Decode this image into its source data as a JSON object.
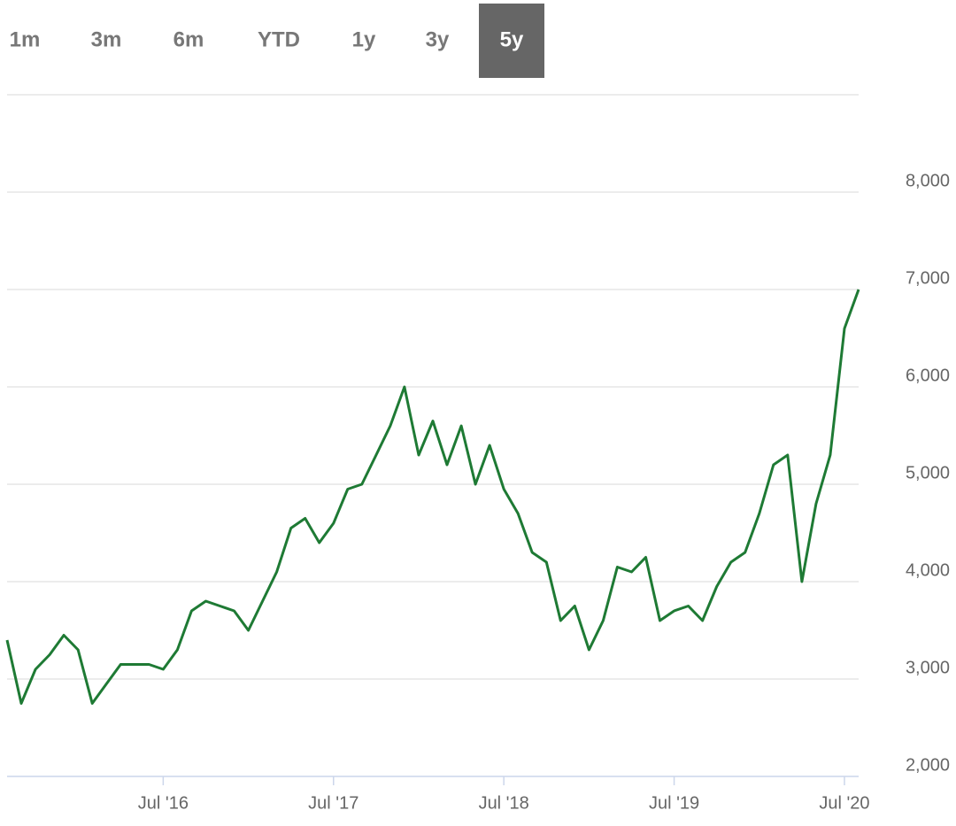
{
  "range_buttons": {
    "options": [
      "1m",
      "3m",
      "6m",
      "YTD",
      "1y",
      "3y",
      "5y"
    ],
    "selected": 6
  },
  "chart_data": {
    "type": "line",
    "color": "#1e7a34",
    "grid": true,
    "x": [
      "2015-08",
      "2015-09",
      "2015-10",
      "2015-11",
      "2015-12",
      "2016-01",
      "2016-02",
      "2016-03",
      "2016-04",
      "2016-05",
      "2016-06",
      "2016-07",
      "2016-08",
      "2016-09",
      "2016-10",
      "2016-11",
      "2016-12",
      "2017-01",
      "2017-02",
      "2017-03",
      "2017-04",
      "2017-05",
      "2017-06",
      "2017-07",
      "2017-08",
      "2017-09",
      "2017-10",
      "2017-11",
      "2017-12",
      "2018-01",
      "2018-02",
      "2018-03",
      "2018-04",
      "2018-05",
      "2018-06",
      "2018-07",
      "2018-08",
      "2018-09",
      "2018-10",
      "2018-11",
      "2018-12",
      "2019-01",
      "2019-02",
      "2019-03",
      "2019-04",
      "2019-05",
      "2019-06",
      "2019-07",
      "2019-08",
      "2019-09",
      "2019-10",
      "2019-11",
      "2019-12",
      "2020-01",
      "2020-02",
      "2020-03",
      "2020-04",
      "2020-05",
      "2020-06",
      "2020-07",
      "2020-08"
    ],
    "values": [
      3400,
      2750,
      3100,
      3250,
      3450,
      3300,
      2750,
      2950,
      3150,
      3150,
      3150,
      3100,
      3300,
      3700,
      3800,
      3750,
      3700,
      3500,
      3800,
      4100,
      4550,
      4650,
      4400,
      4600,
      4950,
      5000,
      5300,
      5600,
      6000,
      5300,
      5650,
      5200,
      5600,
      5000,
      5400,
      4950,
      4700,
      4300,
      4200,
      3600,
      3750,
      3300,
      3600,
      4150,
      4100,
      4250,
      3600,
      3700,
      3750,
      3600,
      3950,
      4200,
      4300,
      4700,
      5200,
      5300,
      4000,
      4800,
      5300,
      6600,
      7000
    ],
    "xlim": [
      "2015-08",
      "2020-08"
    ],
    "xticks": [
      {
        "value": "2016-07",
        "label": "Jul '16"
      },
      {
        "value": "2017-07",
        "label": "Jul '17"
      },
      {
        "value": "2018-07",
        "label": "Jul '18"
      },
      {
        "value": "2019-07",
        "label": "Jul '19"
      },
      {
        "value": "2020-07",
        "label": "Jul '20"
      }
    ],
    "ylim": [
      2000,
      9000
    ],
    "yticks": [
      {
        "value": 2000,
        "label": "2,000"
      },
      {
        "value": 3000,
        "label": "3,000"
      },
      {
        "value": 4000,
        "label": "4,000"
      },
      {
        "value": 5000,
        "label": "5,000"
      },
      {
        "value": 6000,
        "label": "6,000"
      },
      {
        "value": 7000,
        "label": "7,000"
      },
      {
        "value": 8000,
        "label": "8,000"
      }
    ]
  }
}
